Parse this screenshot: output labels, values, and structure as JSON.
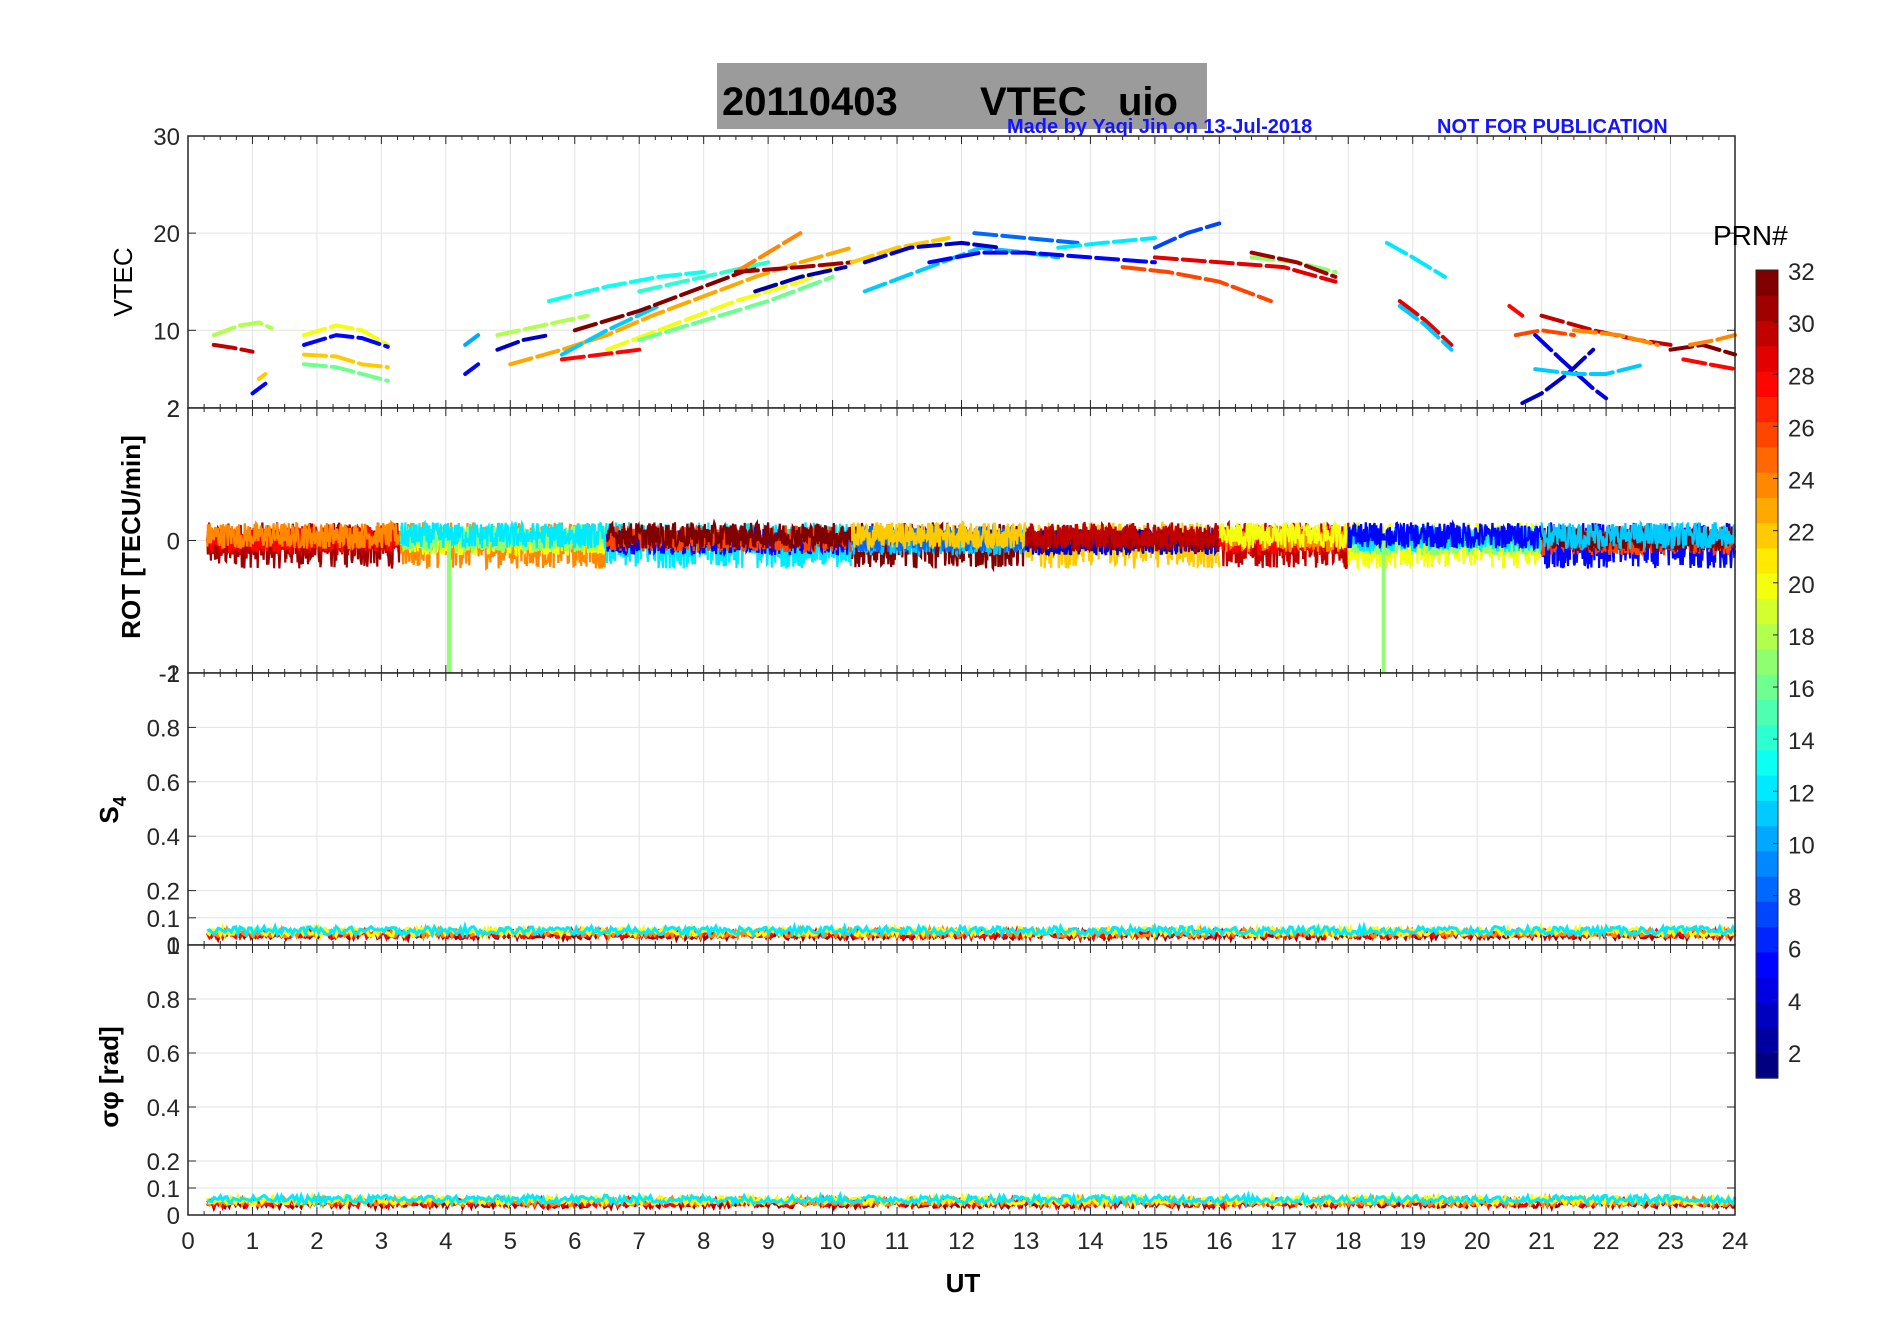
{
  "title": {
    "date": "20110403",
    "quantity": "VTEC",
    "station": "uio",
    "box_color": "#9b9b9b"
  },
  "credit": "Made by Yaqi Jin on 13-Jul-2018",
  "notice": "NOT FOR PUBLICATION",
  "colorbar": {
    "label": "PRN#",
    "range": [
      1,
      32
    ],
    "ticks": [
      2,
      4,
      6,
      8,
      10,
      12,
      14,
      16,
      18,
      20,
      22,
      24,
      26,
      28,
      30,
      32
    ],
    "colormap": "jet"
  },
  "chart_data": [
    {
      "type": "line",
      "panel": "vtec",
      "ylabel": "VTEC",
      "xlim": [
        0,
        24
      ],
      "ylim": [
        2,
        30
      ],
      "yticks": [
        "2",
        "10",
        "20",
        "30"
      ],
      "grid": true,
      "series": [
        {
          "prn": 30,
          "x": [
            0.4,
            0.7,
            1.0
          ],
          "y": [
            8.5,
            8.2,
            7.8
          ]
        },
        {
          "prn": 18,
          "x": [
            0.4,
            0.8,
            1.1,
            1.3
          ],
          "y": [
            9.5,
            10.5,
            10.8,
            10.2
          ]
        },
        {
          "prn": 5,
          "x": [
            1.0,
            1.2
          ],
          "y": [
            3.5,
            4.5
          ]
        },
        {
          "prn": 22,
          "x": [
            1.1,
            1.2
          ],
          "y": [
            5.0,
            5.5
          ]
        },
        {
          "prn": 20,
          "x": [
            1.8,
            2.3,
            2.7,
            3.1
          ],
          "y": [
            9.5,
            10.5,
            10.0,
            8.5
          ]
        },
        {
          "prn": 5,
          "x": [
            1.8,
            2.3,
            2.7,
            3.1
          ],
          "y": [
            8.5,
            9.5,
            9.2,
            8.3
          ]
        },
        {
          "prn": 16,
          "x": [
            1.8,
            2.3,
            2.7,
            3.1
          ],
          "y": [
            6.5,
            6.2,
            5.5,
            4.8
          ]
        },
        {
          "prn": 22,
          "x": [
            1.8,
            2.3,
            2.7,
            3.1
          ],
          "y": [
            7.5,
            7.3,
            6.5,
            6.2
          ]
        },
        {
          "prn": 5,
          "x": [
            4.3,
            4.5
          ],
          "y": [
            5.5,
            6.5
          ]
        },
        {
          "prn": 10,
          "x": [
            4.3,
            4.5
          ],
          "y": [
            8.5,
            9.5
          ]
        },
        {
          "prn": 3,
          "x": [
            4.8,
            5.2,
            5.6
          ],
          "y": [
            8.0,
            9.0,
            9.5
          ]
        },
        {
          "prn": 18,
          "x": [
            4.8,
            5.5,
            6.2
          ],
          "y": [
            9.5,
            10.5,
            11.5
          ]
        },
        {
          "prn": 23,
          "x": [
            5.0,
            5.8,
            6.5,
            7.2,
            8.0,
            8.8,
            9.5,
            10.3
          ],
          "y": [
            6.5,
            8.0,
            9.5,
            11.5,
            13.5,
            15.5,
            17.0,
            18.5
          ]
        },
        {
          "prn": 28,
          "x": [
            5.8,
            6.4,
            7.0
          ],
          "y": [
            7.0,
            7.5,
            8.0
          ]
        },
        {
          "prn": 13,
          "x": [
            5.6,
            6.5,
            7.3,
            8.0
          ],
          "y": [
            13.0,
            14.5,
            15.5,
            16.0
          ]
        },
        {
          "prn": 11,
          "x": [
            5.8,
            6.5,
            7.3
          ],
          "y": [
            7.5,
            10.0,
            12.5
          ]
        },
        {
          "prn": 32,
          "x": [
            6.0,
            7.0,
            8.0,
            8.8
          ],
          "y": [
            10.0,
            12.0,
            14.5,
            16.5
          ]
        },
        {
          "prn": 20,
          "x": [
            6.5,
            7.5,
            8.5,
            9.5,
            10.0
          ],
          "y": [
            8.0,
            10.5,
            13.0,
            15.0,
            16.5
          ]
        },
        {
          "prn": 16,
          "x": [
            7.0,
            8.0,
            9.0,
            10.0
          ],
          "y": [
            9.0,
            11.0,
            13.0,
            15.5
          ]
        },
        {
          "prn": 14,
          "x": [
            7.0,
            8.0,
            9.0
          ],
          "y": [
            14.0,
            15.5,
            17.0
          ]
        },
        {
          "prn": 24,
          "x": [
            8.5,
            9.0,
            9.5
          ],
          "y": [
            16.0,
            18.0,
            20.0
          ]
        },
        {
          "prn": 31,
          "x": [
            8.5,
            9.5,
            10.3
          ],
          "y": [
            16.0,
            16.5,
            17.0
          ]
        },
        {
          "prn": 2,
          "x": [
            8.8,
            9.5,
            10.2
          ],
          "y": [
            14.0,
            15.5,
            16.5
          ]
        },
        {
          "prn": 11,
          "x": [
            10.5,
            11.5,
            12.3,
            13.0,
            13.5
          ],
          "y": [
            14.0,
            16.5,
            18.5,
            18.0,
            17.5
          ]
        },
        {
          "prn": 22,
          "x": [
            10.3,
            11.0,
            11.8
          ],
          "y": [
            17.0,
            18.5,
            19.5
          ]
        },
        {
          "prn": 3,
          "x": [
            10.5,
            11.2,
            12.0,
            12.6
          ],
          "y": [
            17.0,
            18.5,
            19.0,
            18.5
          ]
        },
        {
          "prn": 5,
          "x": [
            11.5,
            12.3,
            13.0,
            14.0,
            15.0
          ],
          "y": [
            17.0,
            18.0,
            18.0,
            17.5,
            17.0
          ]
        },
        {
          "prn": 8,
          "x": [
            12.2,
            13.0,
            13.8
          ],
          "y": [
            20.0,
            19.5,
            19.0
          ]
        },
        {
          "prn": 12,
          "x": [
            13.5,
            14.2,
            15.0
          ],
          "y": [
            18.5,
            19.0,
            19.5
          ]
        },
        {
          "prn": 7,
          "x": [
            15.0,
            15.5,
            16.0
          ],
          "y": [
            18.5,
            20.0,
            21.0
          ]
        },
        {
          "prn": 26,
          "x": [
            14.5,
            15.2,
            16.0,
            16.8
          ],
          "y": [
            16.5,
            16.0,
            15.0,
            13.0
          ]
        },
        {
          "prn": 29,
          "x": [
            15.0,
            16.0,
            17.0,
            17.8
          ],
          "y": [
            17.5,
            17.0,
            16.5,
            15.0
          ]
        },
        {
          "prn": 17,
          "x": [
            16.5,
            17.2,
            17.8
          ],
          "y": [
            17.5,
            17.0,
            16.0
          ]
        },
        {
          "prn": 31,
          "x": [
            16.5,
            17.2,
            17.8
          ],
          "y": [
            18.0,
            17.0,
            15.5
          ]
        },
        {
          "prn": 12,
          "x": [
            18.6,
            19.0,
            19.5
          ],
          "y": [
            19.0,
            17.5,
            15.5
          ]
        },
        {
          "prn": 29,
          "x": [
            18.8,
            19.2,
            19.6
          ],
          "y": [
            13.0,
            11.0,
            8.5
          ]
        },
        {
          "prn": 11,
          "x": [
            18.8,
            19.2,
            19.6
          ],
          "y": [
            12.5,
            10.5,
            8.0
          ]
        },
        {
          "prn": 28,
          "x": [
            20.5,
            20.7
          ],
          "y": [
            12.5,
            11.5
          ]
        },
        {
          "prn": 26,
          "x": [
            20.6,
            21.0,
            21.5
          ],
          "y": [
            9.5,
            10.0,
            9.5
          ]
        },
        {
          "prn": 3,
          "x": [
            20.7,
            21.0,
            21.4,
            21.8
          ],
          "y": [
            2.5,
            3.5,
            5.5,
            8.0
          ]
        },
        {
          "prn": 4,
          "x": [
            20.9,
            21.3,
            21.8,
            22.0
          ],
          "y": [
            9.5,
            7.0,
            4.0,
            3.0
          ]
        },
        {
          "prn": 11,
          "x": [
            20.9,
            21.5,
            22.0,
            22.6
          ],
          "y": [
            6.0,
            5.5,
            5.5,
            6.5
          ]
        },
        {
          "prn": 30,
          "x": [
            21.0,
            21.8,
            22.5,
            23.0
          ],
          "y": [
            11.5,
            10.0,
            9.0,
            8.5
          ]
        },
        {
          "prn": 24,
          "x": [
            21.5,
            22.2,
            22.8
          ],
          "y": [
            10.0,
            9.5,
            8.5
          ]
        },
        {
          "prn": 28,
          "x": [
            23.2,
            23.6,
            24.0
          ],
          "y": [
            7.0,
            6.5,
            6.0
          ]
        },
        {
          "prn": 32,
          "x": [
            23.0,
            23.5,
            24.0
          ],
          "y": [
            8.0,
            8.5,
            7.5
          ]
        },
        {
          "prn": 24,
          "x": [
            23.3,
            23.7,
            24.0
          ],
          "y": [
            8.5,
            9.0,
            9.5
          ]
        }
      ]
    },
    {
      "type": "line",
      "panel": "rot",
      "ylabel": "ROT [TECU/min]",
      "xlim": [
        0,
        24
      ],
      "ylim": [
        -2,
        2
      ],
      "yticks": [
        "-2",
        "0",
        "2"
      ],
      "grid": true,
      "band": "noisy ROT traces around 0, amplitude roughly ±0.5 TECU/min, all PRNs",
      "spikes": [
        {
          "prn": 17,
          "x": 4.05,
          "y": -2.0
        },
        {
          "prn": 17,
          "x": 18.55,
          "y": -2.0
        }
      ]
    },
    {
      "type": "line",
      "panel": "s4",
      "ylabel": "S4",
      "xlim": [
        0,
        24
      ],
      "ylim": [
        0,
        1
      ],
      "yticks": [
        "0",
        "0.1",
        "0.2",
        "0.4",
        "0.6",
        "0.8",
        "1"
      ],
      "grid": true,
      "level": "S4 values ≈ 0.03–0.08 throughout the day"
    },
    {
      "type": "line",
      "panel": "sigma_phi",
      "ylabel": "σφ [rad]",
      "xlabel": "UT",
      "xlim": [
        0,
        24
      ],
      "xticks": [
        "0",
        "1",
        "2",
        "3",
        "4",
        "5",
        "6",
        "7",
        "8",
        "9",
        "10",
        "11",
        "12",
        "13",
        "14",
        "15",
        "16",
        "17",
        "18",
        "19",
        "20",
        "21",
        "22",
        "23",
        "24"
      ],
      "ylim": [
        0,
        1
      ],
      "yticks": [
        "0",
        "0.1",
        "0.2",
        "0.4",
        "0.6",
        "0.8",
        "1"
      ],
      "grid": true,
      "level": "σφ values ≈ 0.03–0.1 rad throughout the day"
    }
  ]
}
